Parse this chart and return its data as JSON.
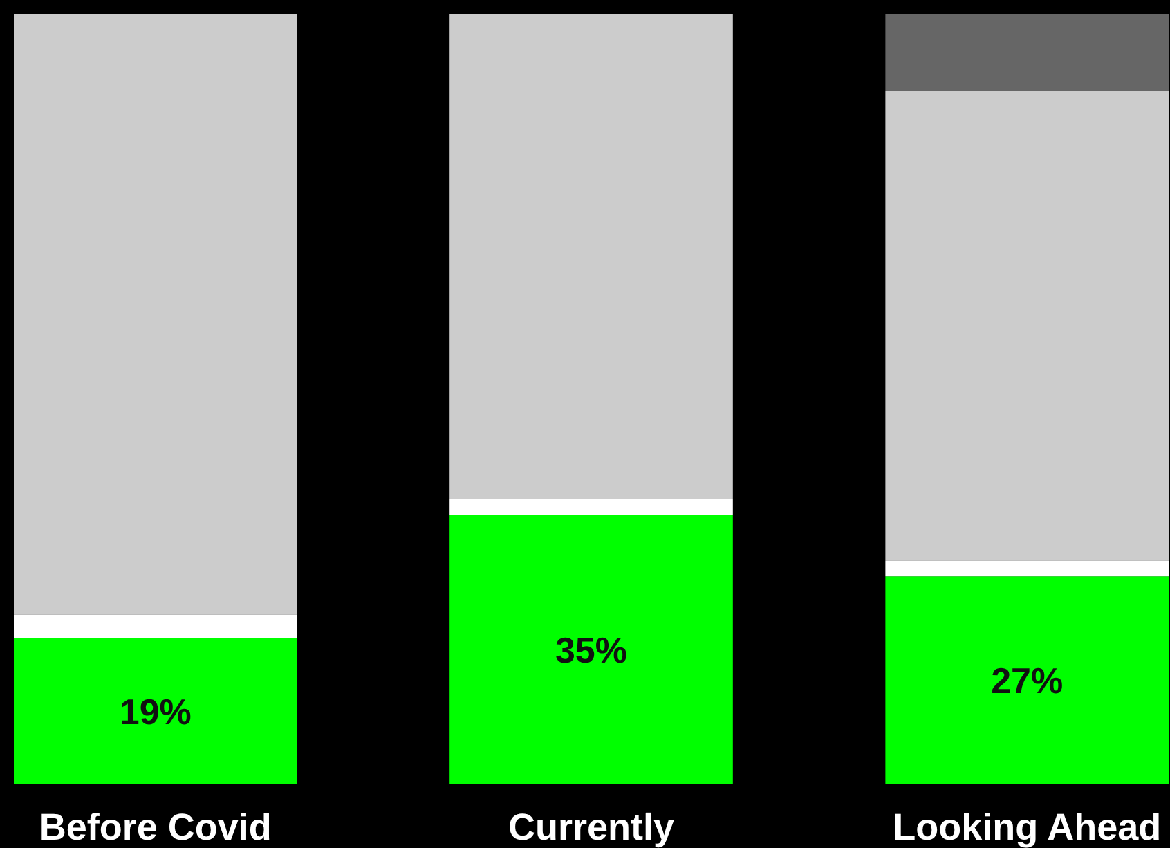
{
  "chart_data": {
    "type": "bar",
    "stacked": true,
    "tick_labels": "x",
    "ylim": [
      0,
      100
    ],
    "categories": [
      "Before Covid",
      "Currently",
      "Looking Ahead"
    ],
    "series": [
      {
        "color": "#00ff00",
        "values": [
          19,
          35,
          27
        ],
        "value_labels": [
          "19%",
          "35%",
          "27%"
        ]
      },
      {
        "color": "#ffffff",
        "values": [
          3,
          2,
          2
        ]
      },
      {
        "color": "#cccccc",
        "values": [
          78,
          63,
          61
        ]
      },
      {
        "color": "#666666",
        "values": [
          null,
          null,
          10
        ]
      }
    ]
  }
}
